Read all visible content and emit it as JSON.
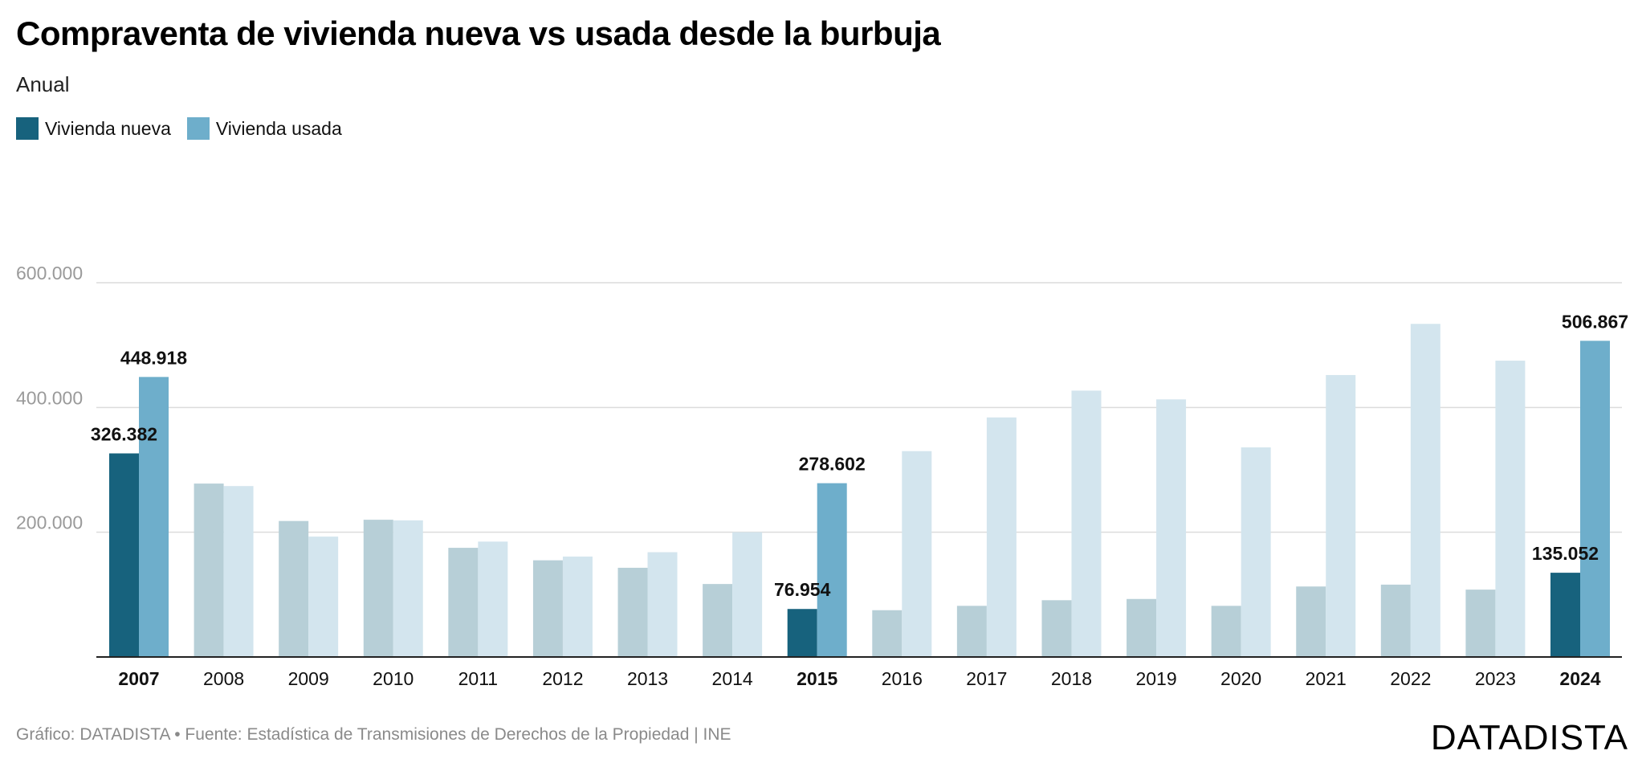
{
  "header": {
    "title": "Compraventa de vivienda nueva vs usada desde la burbuja",
    "subtitle": "Anual"
  },
  "legend": [
    {
      "label": "Vivienda nueva",
      "color": "#17627d"
    },
    {
      "label": "Vivienda usada",
      "color": "#6eaecb"
    }
  ],
  "colors": {
    "nueva_highlight": "#17627d",
    "usada_highlight": "#6eaecb",
    "nueva_muted": "#b7cfd7",
    "usada_muted": "#d3e5ee",
    "grid": "#dcdcdc",
    "axis": "#222222",
    "ytick": "#9a9a9a"
  },
  "chart_data": {
    "type": "bar",
    "title": "Compraventa de vivienda nueva vs usada desde la burbuja",
    "subtitle": "Anual",
    "xlabel": "",
    "ylabel": "",
    "ylim": [
      0,
      600000
    ],
    "yticks": [
      200000,
      400000,
      600000
    ],
    "ytick_labels": [
      "200.000",
      "400.000",
      "600.000"
    ],
    "grid": true,
    "categories": [
      "2007",
      "2008",
      "2009",
      "2010",
      "2011",
      "2012",
      "2013",
      "2014",
      "2015",
      "2016",
      "2017",
      "2018",
      "2019",
      "2020",
      "2021",
      "2022",
      "2023",
      "2024"
    ],
    "highlighted": [
      "2007",
      "2015",
      "2024"
    ],
    "series": [
      {
        "name": "Vivienda nueva",
        "values": [
          326382,
          278000,
          218000,
          220000,
          175000,
          155000,
          143000,
          117000,
          76954,
          75000,
          82000,
          91000,
          93000,
          82000,
          113000,
          116000,
          108000,
          135052
        ]
      },
      {
        "name": "Vivienda usada",
        "values": [
          448918,
          274000,
          193000,
          219000,
          185000,
          161000,
          168000,
          200000,
          278602,
          330000,
          384000,
          427000,
          413000,
          336000,
          452000,
          534000,
          475000,
          506867
        ]
      }
    ],
    "data_labels": [
      {
        "category": "2007",
        "series": "Vivienda nueva",
        "text": "326.382"
      },
      {
        "category": "2007",
        "series": "Vivienda usada",
        "text": "448.918"
      },
      {
        "category": "2015",
        "series": "Vivienda nueva",
        "text": "76.954"
      },
      {
        "category": "2015",
        "series": "Vivienda usada",
        "text": "278.602"
      },
      {
        "category": "2024",
        "series": "Vivienda nueva",
        "text": "135.052"
      },
      {
        "category": "2024",
        "series": "Vivienda usada",
        "text": "506.867"
      }
    ]
  },
  "footer": {
    "source": "Gráfico: DATADISTA • Fuente: Estadística de Transmisiones de Derechos de la Propiedad | INE",
    "logo": "DATADISTA"
  }
}
